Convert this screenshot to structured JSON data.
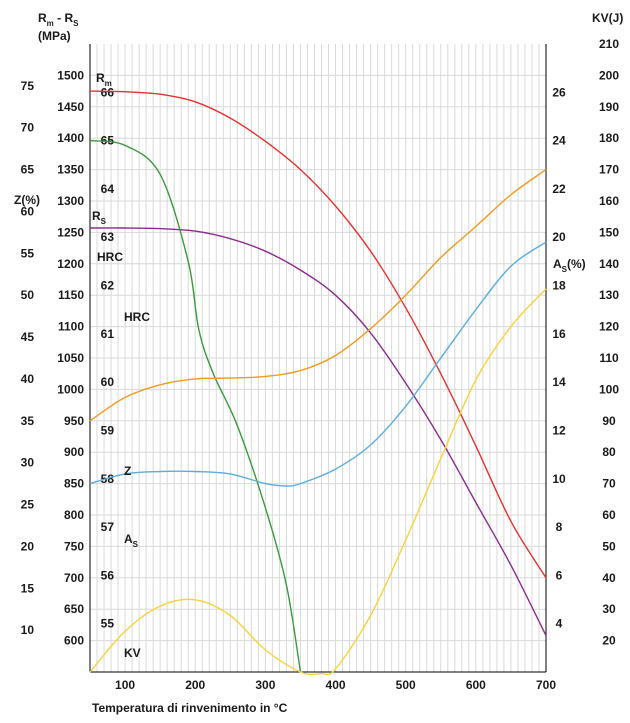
{
  "chart_data": {
    "type": "line",
    "x_axis": {
      "label": "Temperatura di rinvenimento in °C",
      "ticks": [
        100,
        200,
        300,
        400,
        500,
        600,
        700
      ],
      "range": [
        50,
        700
      ]
    },
    "axes": {
      "stress": {
        "label_line1": "Rm - RS",
        "label_line2": "(MPa)",
        "range": [
          550,
          1550
        ],
        "ticks": [
          600,
          650,
          700,
          750,
          800,
          850,
          900,
          950,
          1000,
          1050,
          1100,
          1150,
          1200,
          1250,
          1300,
          1350,
          1400,
          1450,
          1500
        ]
      },
      "z": {
        "label": "Z(%)",
        "range": [
          5,
          80
        ],
        "ticks": [
          10,
          15,
          20,
          25,
          30,
          35,
          40,
          45,
          50,
          55,
          60,
          65,
          70,
          75
        ]
      },
      "hrc": {
        "label": "HRC",
        "range": [
          54,
          67
        ],
        "ticks": [
          55,
          56,
          57,
          58,
          59,
          60,
          61,
          62,
          63,
          64,
          65,
          66
        ]
      },
      "kv": {
        "label": "KV(J)",
        "range": [
          10,
          210
        ],
        "ticks": [
          20,
          30,
          40,
          50,
          60,
          70,
          80,
          90,
          100,
          110,
          120,
          130,
          140,
          150,
          160,
          170,
          180,
          190,
          200,
          210
        ]
      },
      "as": {
        "label": "AS(%)",
        "range": [
          2,
          28
        ],
        "ticks": [
          4,
          6,
          8,
          10,
          12,
          14,
          16,
          18,
          20,
          22,
          24,
          26
        ]
      }
    },
    "series": [
      {
        "name": "Rm",
        "axis": "stress",
        "color": "#e8312f",
        "x": [
          50,
          100,
          150,
          200,
          250,
          300,
          350,
          400,
          450,
          500,
          550,
          600,
          650,
          700
        ],
        "y": [
          1475,
          1474,
          1470,
          1458,
          1432,
          1395,
          1350,
          1292,
          1220,
          1130,
          1025,
          910,
          790,
          700
        ]
      },
      {
        "name": "RS",
        "axis": "stress",
        "color": "#8a2c8f",
        "x": [
          50,
          100,
          150,
          200,
          250,
          300,
          350,
          400,
          450,
          500,
          550,
          600,
          650,
          700
        ],
        "y": [
          1257,
          1257,
          1256,
          1252,
          1240,
          1220,
          1190,
          1150,
          1090,
          1010,
          920,
          820,
          720,
          608
        ]
      },
      {
        "name": "HRC",
        "axis": "hrc",
        "color": "#3a9a3a",
        "x": [
          50,
          100,
          150,
          190,
          205,
          225,
          260,
          300,
          330,
          350
        ],
        "y": [
          65,
          64.9,
          64.3,
          62.5,
          61.1,
          60.2,
          59.1,
          57.4,
          55.8,
          54
        ]
      },
      {
        "name": "Z",
        "axis": "z",
        "color": "#f29b1d",
        "x": [
          50,
          100,
          150,
          200,
          250,
          300,
          350,
          400,
          450,
          500,
          550,
          600,
          650,
          700
        ],
        "y": [
          35,
          37.8,
          39.3,
          40,
          40.1,
          40.3,
          41,
          42.8,
          46,
          50,
          54.5,
          58.2,
          62,
          65
        ]
      },
      {
        "name": "AS",
        "axis": "as",
        "color": "#5aaedf",
        "x": [
          50,
          100,
          150,
          200,
          250,
          300,
          330,
          350,
          400,
          450,
          500,
          550,
          600,
          650,
          700
        ],
        "y": [
          9.8,
          10.2,
          10.3,
          10.3,
          10.2,
          9.8,
          9.7,
          9.8,
          10.4,
          11.4,
          13,
          15,
          17,
          18.8,
          19.8
        ]
      },
      {
        "name": "KV",
        "axis": "kv",
        "color": "#fad23a",
        "x": [
          50,
          100,
          150,
          200,
          250,
          300,
          350,
          380,
          400,
          450,
          500,
          550,
          600,
          650,
          700
        ],
        "y": [
          10,
          23,
          31,
          33,
          28,
          17,
          10,
          9.5,
          11,
          28,
          52,
          78,
          103,
          120,
          132
        ]
      }
    ],
    "curve_labels": {
      "rm": "Rm",
      "rs": "RS",
      "hrc": "HRC",
      "z": "Z",
      "as": "AS",
      "kv": "KV"
    }
  }
}
